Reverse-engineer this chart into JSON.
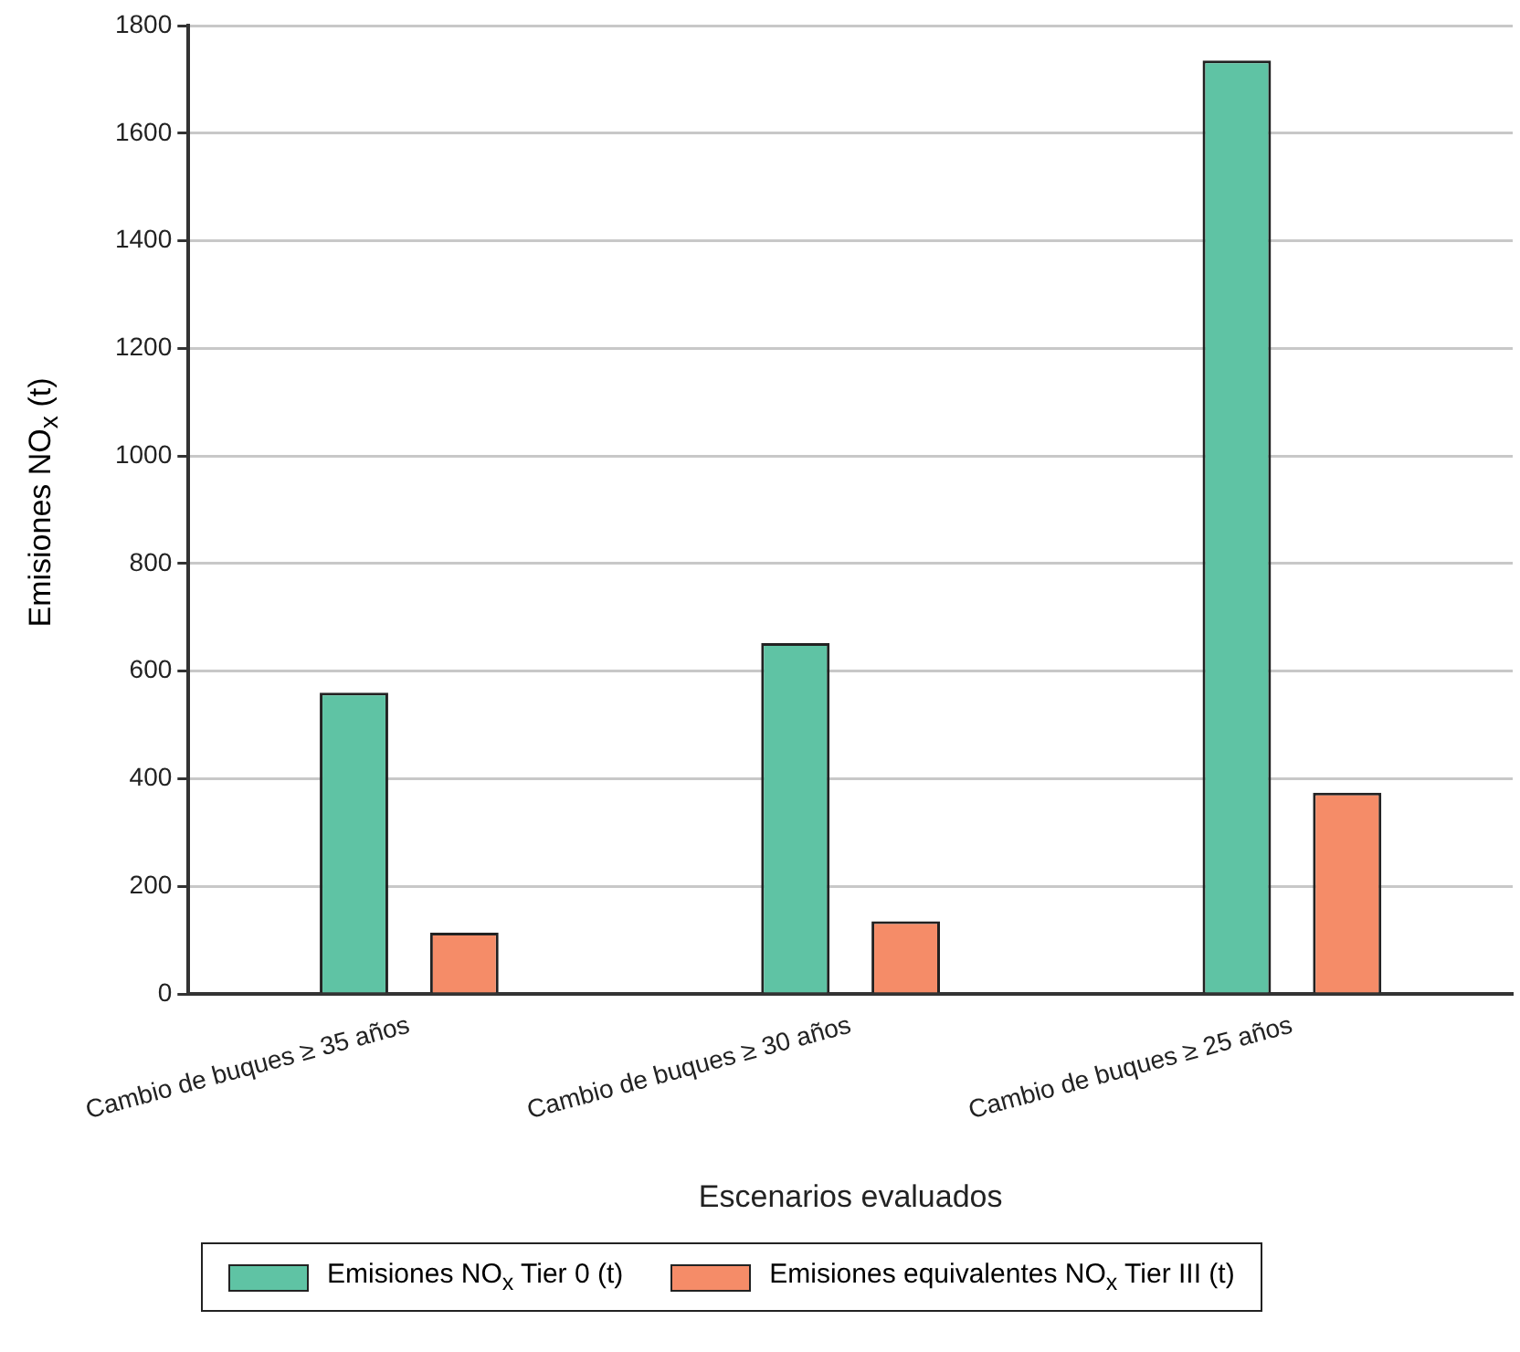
{
  "chart_data": {
    "type": "bar",
    "xlabel": "Escenarios evaluados",
    "ylabel": "Emisiones NO$_{x}$ (t)",
    "categories": [
      "Cambio de buques ≥ 35 años",
      "Cambio de buques ≥ 30 años",
      "Cambio de buques ≥ 25 años"
    ],
    "series": [
      {
        "name": "Emisiones NO$_{x}$ Tier 0 (t)",
        "color": "#5fc3a4",
        "values": [
          560,
          652,
          1735
        ]
      },
      {
        "name": "Emisiones equivalentes NO$_{x}$ Tier III (t)",
        "color": "#f58c68",
        "values": [
          114,
          135,
          374
        ]
      }
    ],
    "ylim": [
      0,
      1800
    ],
    "yticks": [
      0,
      200,
      400,
      600,
      800,
      1000,
      1200,
      1400,
      1600,
      1800
    ],
    "grid": "y",
    "legend": "bottom"
  }
}
